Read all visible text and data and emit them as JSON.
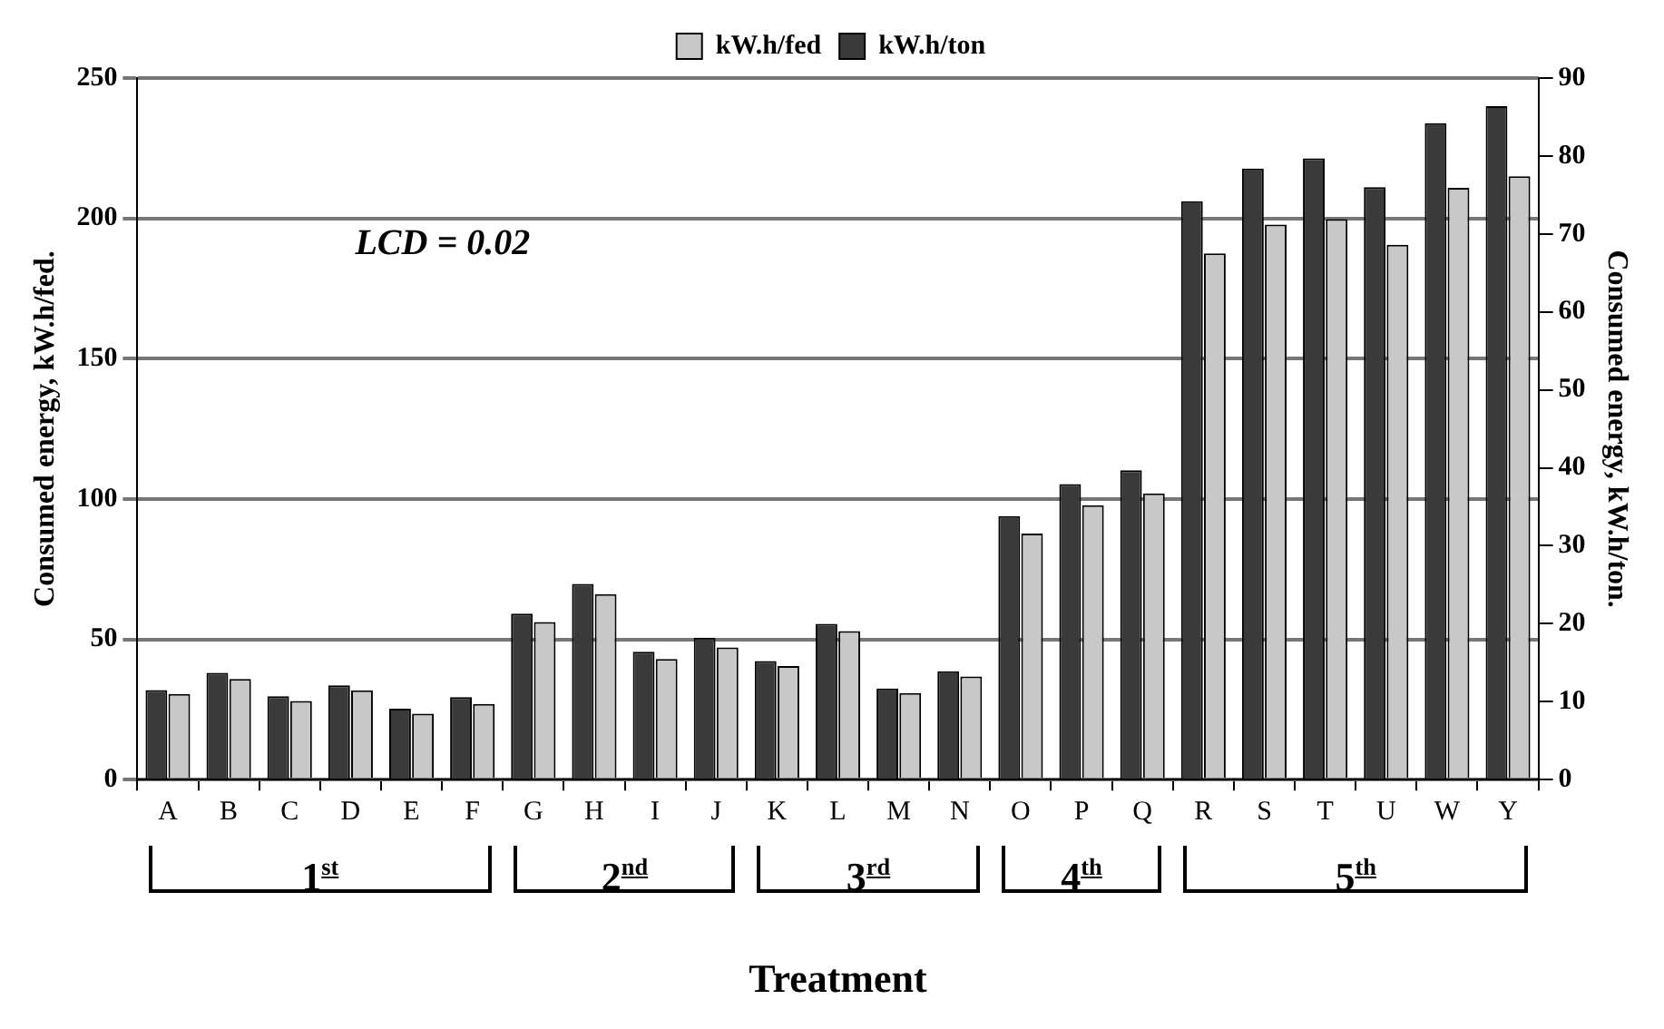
{
  "chart_data": {
    "type": "bar",
    "xlabel": "Treatment",
    "ylabel": "Consumed energy, kW.h/fed.",
    "y2label": "Consumed energy, kW.h/ton.",
    "categories": [
      "A",
      "B",
      "C",
      "D",
      "E",
      "F",
      "G",
      "H",
      "I",
      "J",
      "K",
      "L",
      "M",
      "N",
      "O",
      "P",
      "Q",
      "R",
      "S",
      "T",
      "U",
      "W",
      "Y"
    ],
    "series": [
      {
        "name": "kW.h/ton",
        "color": "#3a3a3a",
        "axis": "y2",
        "values": [
          11.5,
          13.7,
          10.7,
          12.1,
          9.1,
          10.6,
          21.3,
          25.1,
          16.4,
          18.2,
          15.2,
          20.0,
          11.7,
          13.9,
          33.8,
          37.9,
          39.7,
          74.2,
          78.4,
          79.7,
          76.0,
          84.2,
          86.4
        ]
      },
      {
        "name": "kW.h/fed",
        "color": "#c8c8c8",
        "values": [
          30.5,
          35.9,
          28,
          31.8,
          23.5,
          27,
          56.2,
          66.1,
          43,
          47.1,
          40.5,
          52.9,
          30.9,
          36.8,
          87.7,
          97.8,
          102,
          187.5,
          197.8,
          199.7,
          190.6,
          210.9,
          215
        ]
      }
    ],
    "ylim": [
      0,
      250
    ],
    "yticks": [
      0,
      50,
      100,
      150,
      200,
      250
    ],
    "y2lim": [
      0,
      90
    ],
    "y2ticks": [
      0,
      10,
      20,
      30,
      40,
      50,
      60,
      70,
      80,
      90
    ],
    "grid": "y",
    "legend": "top",
    "annotations": [
      "LCD = 0.02",
      "1$^{st}$",
      "2$^{nd}$",
      "3$^{rd}$",
      "4$^{th}$",
      "5$^{th}$"
    ]
  }
}
